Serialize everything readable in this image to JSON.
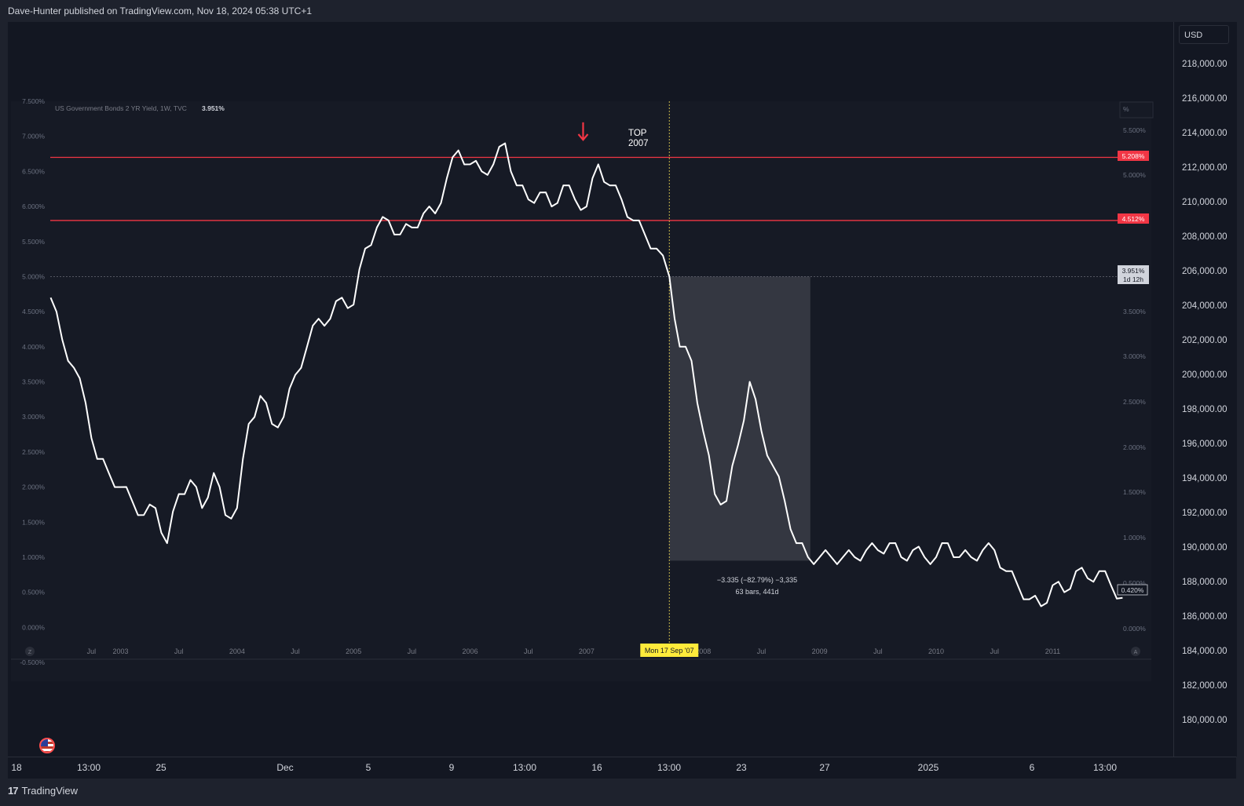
{
  "header": {
    "text": "Dave-Hunter published on TradingView.com, Nov 18, 2024 05:38 UTC+1"
  },
  "footer": {
    "brand": "TradingView",
    "logo": "17"
  },
  "price_axis": {
    "currency": "USD",
    "labels": [
      "218,000.00",
      "216,000.00",
      "214,000.00",
      "212,000.00",
      "210,000.00",
      "208,000.00",
      "206,000.00",
      "204,000.00",
      "202,000.00",
      "200,000.00",
      "198,000.00",
      "196,000.00",
      "194,000.00",
      "192,000.00",
      "190,000.00",
      "188,000.00",
      "186,000.00",
      "184,000.00",
      "182,000.00",
      "180,000.00"
    ]
  },
  "time_axis": {
    "labels": [
      "18",
      "13:00",
      "25",
      "Dec",
      "5",
      "9",
      "13:00",
      "16",
      "13:00",
      "23",
      "27",
      "2025",
      "6",
      "13:00"
    ]
  },
  "colors": {
    "background": "#131722",
    "line": "#ffffff",
    "resistance": "#f23645",
    "highlight": "#ffeb3b"
  },
  "chart_data": {
    "type": "line",
    "legend": "US Government Bonds 2 YR Yield, 1W, TVC",
    "legend_value": "3.951%",
    "unit": "%",
    "left_axis_ticks": [
      "7.500%",
      "7.000%",
      "6.500%",
      "6.000%",
      "5.500%",
      "5.000%",
      "4.500%",
      "4.000%",
      "3.500%",
      "3.000%",
      "2.500%",
      "2.000%",
      "1.500%",
      "1.000%",
      "0.500%",
      "0.000%",
      "-0.500%"
    ],
    "right_axis_ticks": [
      "%",
      "5.500%",
      "5.000%",
      "3.500%",
      "3.000%",
      "2.500%",
      "2.000%",
      "1.500%",
      "1.000%",
      "0.500%",
      "0.000%"
    ],
    "x_ticks": [
      "Jul",
      "2003",
      "Jul",
      "2004",
      "Jul",
      "2005",
      "Jul",
      "2006",
      "Jul",
      "2007",
      "2008",
      "Jul",
      "2009",
      "Jul",
      "2010",
      "Jul",
      "2011"
    ],
    "x_range": [
      "2002-05",
      "2011-09"
    ],
    "series": [
      {
        "x": [
          2002.4,
          2002.5,
          2002.6,
          2002.7,
          2002.8,
          2002.9,
          2003.0,
          2003.1,
          2003.2,
          2003.3,
          2003.4,
          2003.5,
          2003.6,
          2003.7,
          2003.8,
          2003.9,
          2004.0,
          2004.1,
          2004.2,
          2004.3,
          2004.4,
          2004.5,
          2004.6,
          2004.7,
          2004.8,
          2004.9,
          2005.0,
          2005.1,
          2005.2,
          2005.3,
          2005.4,
          2005.5,
          2005.6,
          2005.7,
          2005.8,
          2005.9,
          2006.0,
          2006.1,
          2006.2,
          2006.3,
          2006.4,
          2006.5,
          2006.6,
          2006.7,
          2006.8,
          2006.9,
          2007.0,
          2007.1,
          2007.2,
          2007.3,
          2007.4,
          2007.5,
          2007.6,
          2007.71,
          2007.8,
          2007.9,
          2008.0,
          2008.1,
          2008.2,
          2008.3,
          2008.4,
          2008.5,
          2008.6,
          2008.7,
          2008.8,
          2008.9,
          2009.0,
          2009.1,
          2009.2,
          2009.3,
          2009.4,
          2009.5,
          2009.6,
          2009.7,
          2009.8,
          2009.9,
          2010.0,
          2010.1,
          2010.2,
          2010.3,
          2010.4,
          2010.5,
          2010.6,
          2010.7,
          2010.8,
          2010.9,
          2011.0,
          2011.1,
          2011.2,
          2011.3,
          2011.4,
          2011.5,
          2011.6
        ],
        "y": [
          4.7,
          4.1,
          3.7,
          3.2,
          2.4,
          2.2,
          2.0,
          1.8,
          1.6,
          1.7,
          1.2,
          1.9,
          2.1,
          1.7,
          2.2,
          1.6,
          1.7,
          2.9,
          3.3,
          2.9,
          3.0,
          3.6,
          4.0,
          4.4,
          4.4,
          4.7,
          4.6,
          5.4,
          5.7,
          5.8,
          5.6,
          5.7,
          5.9,
          5.9,
          6.4,
          6.8,
          6.6,
          6.5,
          6.6,
          6.9,
          6.3,
          6.1,
          6.2,
          6.0,
          6.3,
          6.1,
          6.0,
          6.6,
          6.3,
          6.1,
          5.8,
          5.6,
          5.4,
          5.0,
          4.0,
          3.8,
          2.8,
          1.9,
          1.8,
          2.6,
          3.5,
          2.8,
          2.3,
          1.8,
          1.2,
          1.0,
          1.0,
          1.0,
          1.0,
          1.0,
          1.1,
          1.1,
          1.2,
          1.0,
          1.1,
          1.0,
          1.0,
          1.2,
          1.0,
          1.0,
          1.1,
          1.1,
          0.8,
          0.6,
          0.4,
          0.3,
          0.6,
          0.5,
          0.8,
          0.7,
          0.8,
          0.6,
          0.42
        ]
      }
    ],
    "hlines": [
      {
        "value": "5.208%"
      },
      {
        "value": "4.512%"
      }
    ],
    "current_value": "3.951%",
    "current_countdown": "1d 12h",
    "last_value": "0.420%",
    "crosshair_label": "Mon 17 Sep '07",
    "annotation": {
      "text": [
        "TOP",
        "2007"
      ]
    },
    "measure": {
      "line1": "−3.335 (−82.79%) −3,335",
      "line2": "63 bars, 441d"
    },
    "left_badge": "Z",
    "right_badge": "A"
  }
}
